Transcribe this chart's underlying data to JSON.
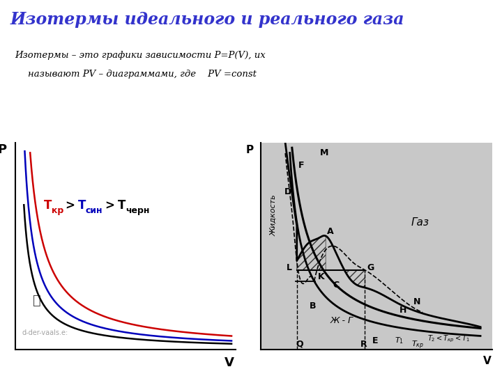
{
  "title": "Изотермы идеального и реального газа",
  "title_color": "#3333cc",
  "subtitle_line1": "Изотермы – это графики зависимости P=P(V), их",
  "subtitle_line2": "называют PV – диаграммами, где    PV =const",
  "subtitle_color": "#000000",
  "left_label_P": "P",
  "left_label_V": "V",
  "right_label_P": "P",
  "right_label_V": "V",
  "temp_colors": [
    "#cc0000",
    "#0000bb",
    "#000000"
  ],
  "right_bg_color": "#c8c8c8",
  "left_bg_color": "#ffffff",
  "watermark": "d-der-vaals.e:",
  "right_text_gas": "Газ",
  "right_text_liq": "Жидкость",
  "right_text_lg": "Ж - Г"
}
